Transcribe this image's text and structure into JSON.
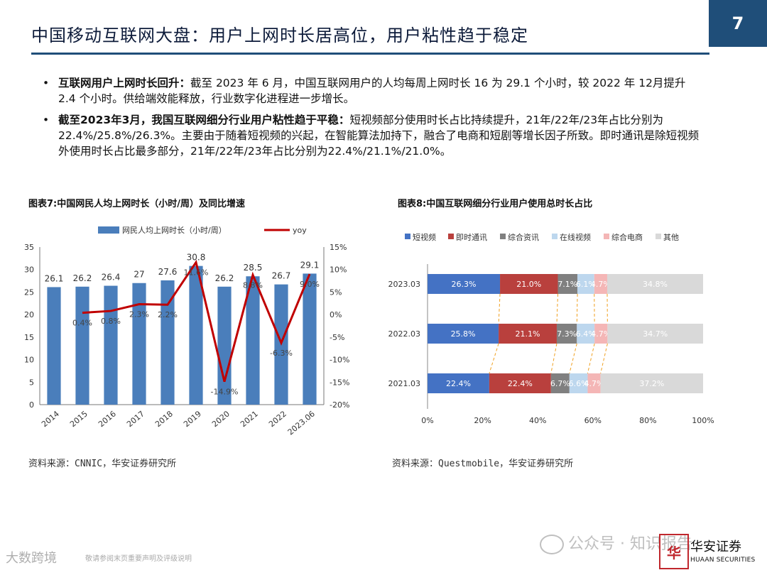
{
  "header": {
    "title": "中国移动互联网大盘：用户上网时长居高位，用户粘性趋于稳定",
    "page_number": "7"
  },
  "bullets": [
    {
      "lead": "互联网用户上网时长回升：",
      "text": "截至 2023 年 6 月，中国互联网用户的人均每周上网时长 16 为 29.1 个小时，较 2022 年 12月提升 2.4 个小时。供给端效能释放，行业数字化进程进一步增长。"
    },
    {
      "lead": "截至2023年3月，我国互联网细分行业用户粘性趋于平稳：",
      "text": "短视频部分使用时长占比持续提升，21年/22年/23年占比分别为22.4%/25.8%/26.3%。主要由于随着短视频的兴起，在智能算法加持下，融合了电商和短剧等增长因子所致。即时通讯是除短视频外使用时长占比最多部分，21年/22年/23年占比分别为22.4%/21.1%/21.0%。"
    }
  ],
  "figure7": {
    "title": "图表7:中国网民人均上网时长（小时/周）及同比增速",
    "source": "资料来源：CNNIC，华安证券研究所"
  },
  "figure8": {
    "title": "图表8:中国互联网细分行业用户使用总时长占比",
    "source": "资料来源：Questmobile，华安证券研究所"
  },
  "chart_data": [
    {
      "type": "bar",
      "id": "fig7",
      "categories": [
        "2014",
        "2015",
        "2016",
        "2017",
        "2018",
        "2019",
        "2020",
        "2021",
        "2022",
        "2023.06"
      ],
      "series": [
        {
          "name": "网民人均上网时长（小时/周）",
          "type": "bar",
          "axis": "left",
          "values": [
            26.1,
            26.2,
            26.4,
            27,
            27.6,
            30.8,
            26.2,
            28.5,
            26.7,
            29.1
          ],
          "labels": [
            "26.1",
            "26.2",
            "26.4",
            "27",
            "27.6",
            "30.8",
            "26.2",
            "28.5",
            "26.7",
            "29.1"
          ]
        },
        {
          "name": "yoy",
          "type": "line",
          "axis": "right",
          "values": [
            null,
            0.4,
            0.8,
            2.3,
            2.2,
            11.6,
            -14.9,
            8.8,
            -6.3,
            9.0
          ],
          "labels": [
            "",
            "0.4%",
            "0.8%",
            "2.3%",
            "2.2%",
            "11.6%",
            "-14.9%",
            "8.8%",
            "-6.3%",
            "9.0%"
          ]
        }
      ],
      "ylim": [
        0,
        35
      ],
      "yticks": [
        "0",
        "5",
        "10",
        "15",
        "20",
        "25",
        "30",
        "35"
      ],
      "y2lim": [
        -20,
        15
      ],
      "y2ticks": [
        "-20%",
        "-15%",
        "-10%",
        "-5%",
        "0%",
        "5%",
        "10%",
        "15%"
      ],
      "colors": {
        "bar": "#4a7ebb",
        "line": "#c00000"
      },
      "legend": "top"
    },
    {
      "type": "bar",
      "id": "fig8",
      "orientation": "horizontal-stacked-100",
      "categories": [
        "2023.03",
        "2022.03",
        "2021.03"
      ],
      "series": [
        {
          "name": "短视频",
          "color": "#4472c4",
          "values": [
            26.3,
            25.8,
            22.4
          ],
          "labels": [
            "26.3%",
            "25.8%",
            "22.4%"
          ]
        },
        {
          "name": "即时通讯",
          "color": "#b9403d",
          "values": [
            21.0,
            21.1,
            22.4
          ],
          "labels": [
            "21.0%",
            "21.1%",
            "22.4%"
          ]
        },
        {
          "name": "综合资讯",
          "color": "#808080",
          "values": [
            7.1,
            7.3,
            6.7
          ],
          "labels": [
            "7.1%",
            "7.3%",
            "6.7%"
          ]
        },
        {
          "name": "在线视频",
          "color": "#bdd7ee",
          "values": [
            6.1,
            6.4,
            6.6
          ],
          "labels": [
            "6.1%",
            "6.4%",
            "6.6%"
          ]
        },
        {
          "name": "综合电商",
          "color": "#f4b6b6",
          "values": [
            4.7,
            4.7,
            4.7
          ],
          "labels": [
            "4.7%",
            "4.7%",
            "4.7%"
          ]
        },
        {
          "name": "其他",
          "color": "#d9d9d9",
          "values": [
            34.8,
            34.7,
            37.2
          ],
          "labels": [
            "34.8%",
            "34.7%",
            "37.2%"
          ]
        }
      ],
      "xlim": [
        0,
        100
      ],
      "xticks": [
        "0%",
        "20%",
        "40%",
        "60%",
        "80%",
        "100%"
      ],
      "legend": "top"
    }
  ],
  "footer": {
    "left_watermark": "大数跨境",
    "note": "敬请参阅末页重要声明及评级说明",
    "watermark": "公众号 · 知识报告",
    "logo_char": "华",
    "logo_cn": "华安证券",
    "logo_en": "HUAAN SECURITIES"
  }
}
